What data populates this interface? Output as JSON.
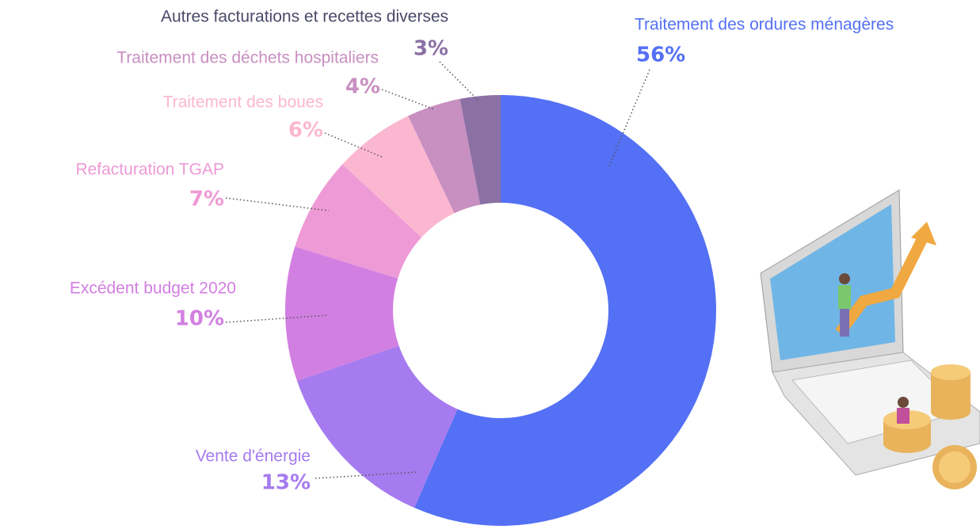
{
  "chart_data": {
    "type": "donut",
    "categories": [
      "Traitement des ordures ménagères",
      "Vente d'énergie",
      "Excédent budget 2020",
      "Refacturation TGAP",
      "Traitement des boues",
      "Traitement des déchets hospitaliers",
      "Autres facturations et recettes diverses"
    ],
    "values": [
      56,
      13,
      10,
      7,
      6,
      4,
      3
    ],
    "value_labels": [
      "56%",
      "13%",
      "10%",
      "7%",
      "6%",
      "4%",
      "3%"
    ],
    "colors": [
      "#5470f5",
      "#a67bef",
      "#d27fe2",
      "#ee9ad6",
      "#fbb7d0",
      "#c88fc1",
      "#8b70a4"
    ]
  }
}
